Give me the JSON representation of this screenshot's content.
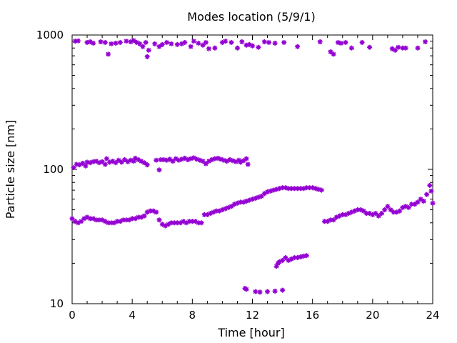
{
  "chart_data": {
    "type": "scatter",
    "title": "Modes location (5/9/1)",
    "xlabel": "Time [hour]",
    "ylabel": "Particle size [nm]",
    "xlim": [
      0,
      24
    ],
    "ylim": [
      10,
      1000
    ],
    "yscale": "log",
    "x_ticks": [
      0,
      4,
      8,
      12,
      16,
      20,
      24
    ],
    "y_ticks": [
      10,
      100,
      1000
    ],
    "grid": false,
    "legend": "none",
    "marker": "asterisk",
    "color": "#9400d3",
    "series": [
      {
        "points": [
          [
            0.2,
            900
          ],
          [
            0.4,
            905
          ],
          [
            1.0,
            880
          ],
          [
            1.2,
            890
          ],
          [
            1.4,
            870
          ],
          [
            1.9,
            890
          ],
          [
            2.2,
            880
          ],
          [
            2.4,
            720
          ],
          [
            2.6,
            860
          ],
          [
            2.9,
            870
          ],
          [
            3.2,
            880
          ],
          [
            3.6,
            900
          ],
          [
            3.9,
            890
          ],
          [
            4.1,
            910
          ],
          [
            4.3,
            880
          ],
          [
            4.5,
            860
          ],
          [
            4.7,
            820
          ],
          [
            4.9,
            880
          ],
          [
            5.0,
            690
          ],
          [
            5.1,
            770
          ],
          [
            5.5,
            860
          ],
          [
            5.8,
            820
          ],
          [
            6.0,
            850
          ],
          [
            6.3,
            880
          ],
          [
            6.6,
            860
          ],
          [
            7.0,
            850
          ],
          [
            7.3,
            860
          ],
          [
            7.5,
            880
          ],
          [
            7.9,
            820
          ],
          [
            8.1,
            900
          ],
          [
            8.4,
            870
          ],
          [
            8.7,
            840
          ],
          [
            8.9,
            880
          ],
          [
            9.1,
            790
          ],
          [
            9.5,
            800
          ],
          [
            10.0,
            880
          ],
          [
            10.2,
            900
          ],
          [
            10.6,
            880
          ],
          [
            11.0,
            800
          ],
          [
            11.3,
            890
          ],
          [
            11.6,
            840
          ],
          [
            11.8,
            850
          ],
          [
            12.0,
            830
          ],
          [
            12.4,
            810
          ],
          [
            12.8,
            890
          ],
          [
            13.1,
            880
          ],
          [
            13.5,
            870
          ],
          [
            14.1,
            880
          ],
          [
            15.0,
            820
          ],
          [
            16.5,
            890
          ],
          [
            17.2,
            750
          ],
          [
            17.4,
            720
          ],
          [
            17.7,
            880
          ],
          [
            17.9,
            870
          ],
          [
            18.2,
            880
          ],
          [
            18.6,
            800
          ],
          [
            19.3,
            880
          ],
          [
            19.8,
            810
          ],
          [
            21.3,
            790
          ],
          [
            21.5,
            770
          ],
          [
            21.7,
            810
          ],
          [
            22.0,
            800
          ],
          [
            22.2,
            800
          ],
          [
            23.0,
            800
          ],
          [
            23.5,
            890
          ]
        ]
      },
      {
        "points": [
          [
            0.1,
            103
          ],
          [
            0.3,
            109
          ],
          [
            0.5,
            108
          ],
          [
            0.7,
            111
          ],
          [
            0.9,
            106
          ],
          [
            1.0,
            113
          ],
          [
            1.2,
            112
          ],
          [
            1.4,
            114
          ],
          [
            1.6,
            115
          ],
          [
            1.8,
            112
          ],
          [
            2.0,
            114
          ],
          [
            2.2,
            109
          ],
          [
            2.3,
            120
          ],
          [
            2.5,
            113
          ],
          [
            2.7,
            115
          ],
          [
            2.9,
            112
          ],
          [
            3.1,
            117
          ],
          [
            3.3,
            113
          ],
          [
            3.5,
            118
          ],
          [
            3.7,
            114
          ],
          [
            3.9,
            117
          ],
          [
            4.1,
            115
          ],
          [
            4.2,
            121
          ],
          [
            4.4,
            118
          ],
          [
            4.6,
            115
          ],
          [
            4.8,
            112
          ],
          [
            5.0,
            108
          ],
          [
            5.6,
            117
          ],
          [
            5.8,
            99
          ],
          [
            5.9,
            118
          ],
          [
            6.1,
            118
          ],
          [
            6.3,
            117
          ],
          [
            6.5,
            119
          ],
          [
            6.7,
            115
          ],
          [
            6.9,
            120
          ],
          [
            7.1,
            117
          ],
          [
            7.3,
            119
          ],
          [
            7.5,
            121
          ],
          [
            7.7,
            118
          ],
          [
            7.9,
            120
          ],
          [
            8.1,
            122
          ],
          [
            8.3,
            119
          ],
          [
            8.5,
            117
          ],
          [
            8.7,
            115
          ],
          [
            8.9,
            110
          ],
          [
            9.1,
            115
          ],
          [
            9.3,
            118
          ],
          [
            9.5,
            120
          ],
          [
            9.7,
            121
          ],
          [
            9.9,
            119
          ],
          [
            10.1,
            117
          ],
          [
            10.3,
            115
          ],
          [
            10.5,
            118
          ],
          [
            10.7,
            116
          ],
          [
            10.9,
            114
          ],
          [
            11.1,
            117
          ],
          [
            11.2,
            113
          ],
          [
            11.4,
            116
          ],
          [
            11.6,
            120
          ],
          [
            11.7,
            109
          ]
        ]
      },
      {
        "points": [
          [
            0.0,
            43
          ],
          [
            0.2,
            41
          ],
          [
            0.4,
            40
          ],
          [
            0.6,
            41
          ],
          [
            0.8,
            43
          ],
          [
            1.0,
            44
          ],
          [
            1.2,
            43
          ],
          [
            1.4,
            43
          ],
          [
            1.6,
            42
          ],
          [
            1.8,
            42
          ],
          [
            2.0,
            42
          ],
          [
            2.2,
            41
          ],
          [
            2.4,
            40
          ],
          [
            2.6,
            40
          ],
          [
            2.8,
            40
          ],
          [
            3.0,
            41
          ],
          [
            3.2,
            41
          ],
          [
            3.4,
            42
          ],
          [
            3.6,
            42
          ],
          [
            3.8,
            42
          ],
          [
            4.0,
            43
          ],
          [
            4.2,
            43
          ],
          [
            4.4,
            44
          ],
          [
            4.6,
            44
          ],
          [
            4.8,
            45
          ],
          [
            5.0,
            48
          ],
          [
            5.2,
            49
          ],
          [
            5.4,
            49
          ],
          [
            5.6,
            48
          ],
          [
            5.8,
            42
          ],
          [
            6.0,
            39
          ],
          [
            6.2,
            38
          ],
          [
            6.4,
            39
          ],
          [
            6.6,
            40
          ],
          [
            6.8,
            40
          ],
          [
            7.0,
            40
          ],
          [
            7.2,
            40
          ],
          [
            7.4,
            41
          ],
          [
            7.6,
            40
          ],
          [
            7.8,
            41
          ],
          [
            8.0,
            41
          ],
          [
            8.2,
            41
          ],
          [
            8.4,
            40
          ],
          [
            8.6,
            40
          ],
          [
            8.8,
            46
          ],
          [
            9.0,
            46
          ],
          [
            9.2,
            47
          ],
          [
            9.4,
            48
          ],
          [
            9.6,
            49
          ],
          [
            9.8,
            49
          ],
          [
            10.0,
            50
          ],
          [
            10.2,
            51
          ],
          [
            10.4,
            52
          ],
          [
            10.6,
            53
          ],
          [
            10.8,
            55
          ],
          [
            11.0,
            56
          ],
          [
            11.2,
            57
          ],
          [
            11.4,
            57
          ],
          [
            11.6,
            58
          ],
          [
            11.8,
            59
          ],
          [
            12.0,
            60
          ],
          [
            12.2,
            61
          ],
          [
            12.4,
            62
          ],
          [
            12.6,
            63
          ],
          [
            12.8,
            66
          ],
          [
            13.0,
            68
          ],
          [
            13.2,
            69
          ],
          [
            13.4,
            70
          ],
          [
            13.6,
            71
          ],
          [
            13.8,
            72
          ],
          [
            14.0,
            73
          ],
          [
            14.2,
            73
          ],
          [
            14.4,
            72
          ],
          [
            14.6,
            72
          ],
          [
            14.8,
            72
          ],
          [
            15.0,
            72
          ],
          [
            15.2,
            72
          ],
          [
            15.4,
            72
          ],
          [
            15.6,
            73
          ],
          [
            15.8,
            73
          ],
          [
            16.0,
            73
          ],
          [
            16.2,
            72
          ],
          [
            16.4,
            71
          ],
          [
            16.6,
            70
          ],
          [
            16.8,
            41
          ],
          [
            17.0,
            41
          ],
          [
            17.2,
            42
          ],
          [
            17.4,
            42
          ],
          [
            17.6,
            44
          ],
          [
            17.8,
            45
          ],
          [
            18.0,
            46
          ],
          [
            18.2,
            46
          ],
          [
            18.4,
            47
          ],
          [
            18.6,
            48
          ],
          [
            18.8,
            49
          ],
          [
            19.0,
            50
          ],
          [
            19.2,
            50
          ],
          [
            19.4,
            49
          ],
          [
            19.6,
            47
          ],
          [
            19.8,
            47
          ],
          [
            20.0,
            46
          ],
          [
            20.2,
            47
          ],
          [
            20.4,
            45
          ],
          [
            20.6,
            47
          ],
          [
            20.8,
            50
          ],
          [
            21.0,
            53
          ],
          [
            21.2,
            50
          ],
          [
            21.4,
            48
          ],
          [
            21.6,
            48
          ],
          [
            21.8,
            49
          ],
          [
            22.0,
            52
          ],
          [
            22.2,
            53
          ],
          [
            22.4,
            52
          ],
          [
            22.6,
            55
          ],
          [
            22.8,
            55
          ],
          [
            23.0,
            57
          ],
          [
            23.2,
            60
          ],
          [
            23.4,
            58
          ],
          [
            23.6,
            65
          ],
          [
            23.8,
            76
          ],
          [
            23.9,
            69
          ],
          [
            24.0,
            56
          ]
        ]
      },
      {
        "points": [
          [
            11.5,
            13
          ],
          [
            11.6,
            12.8
          ],
          [
            12.2,
            12.3
          ],
          [
            12.5,
            12.2
          ],
          [
            13.0,
            12.3
          ],
          [
            13.5,
            12.4
          ],
          [
            14.0,
            12.6
          ],
          [
            13.6,
            19
          ],
          [
            13.7,
            20
          ],
          [
            13.8,
            20.5
          ],
          [
            14.0,
            21
          ],
          [
            14.2,
            22
          ],
          [
            14.4,
            21
          ],
          [
            14.6,
            21.5
          ],
          [
            14.8,
            22
          ],
          [
            15.0,
            22
          ],
          [
            15.2,
            22.3
          ],
          [
            15.4,
            22.6
          ],
          [
            15.6,
            22.8
          ]
        ]
      }
    ]
  }
}
